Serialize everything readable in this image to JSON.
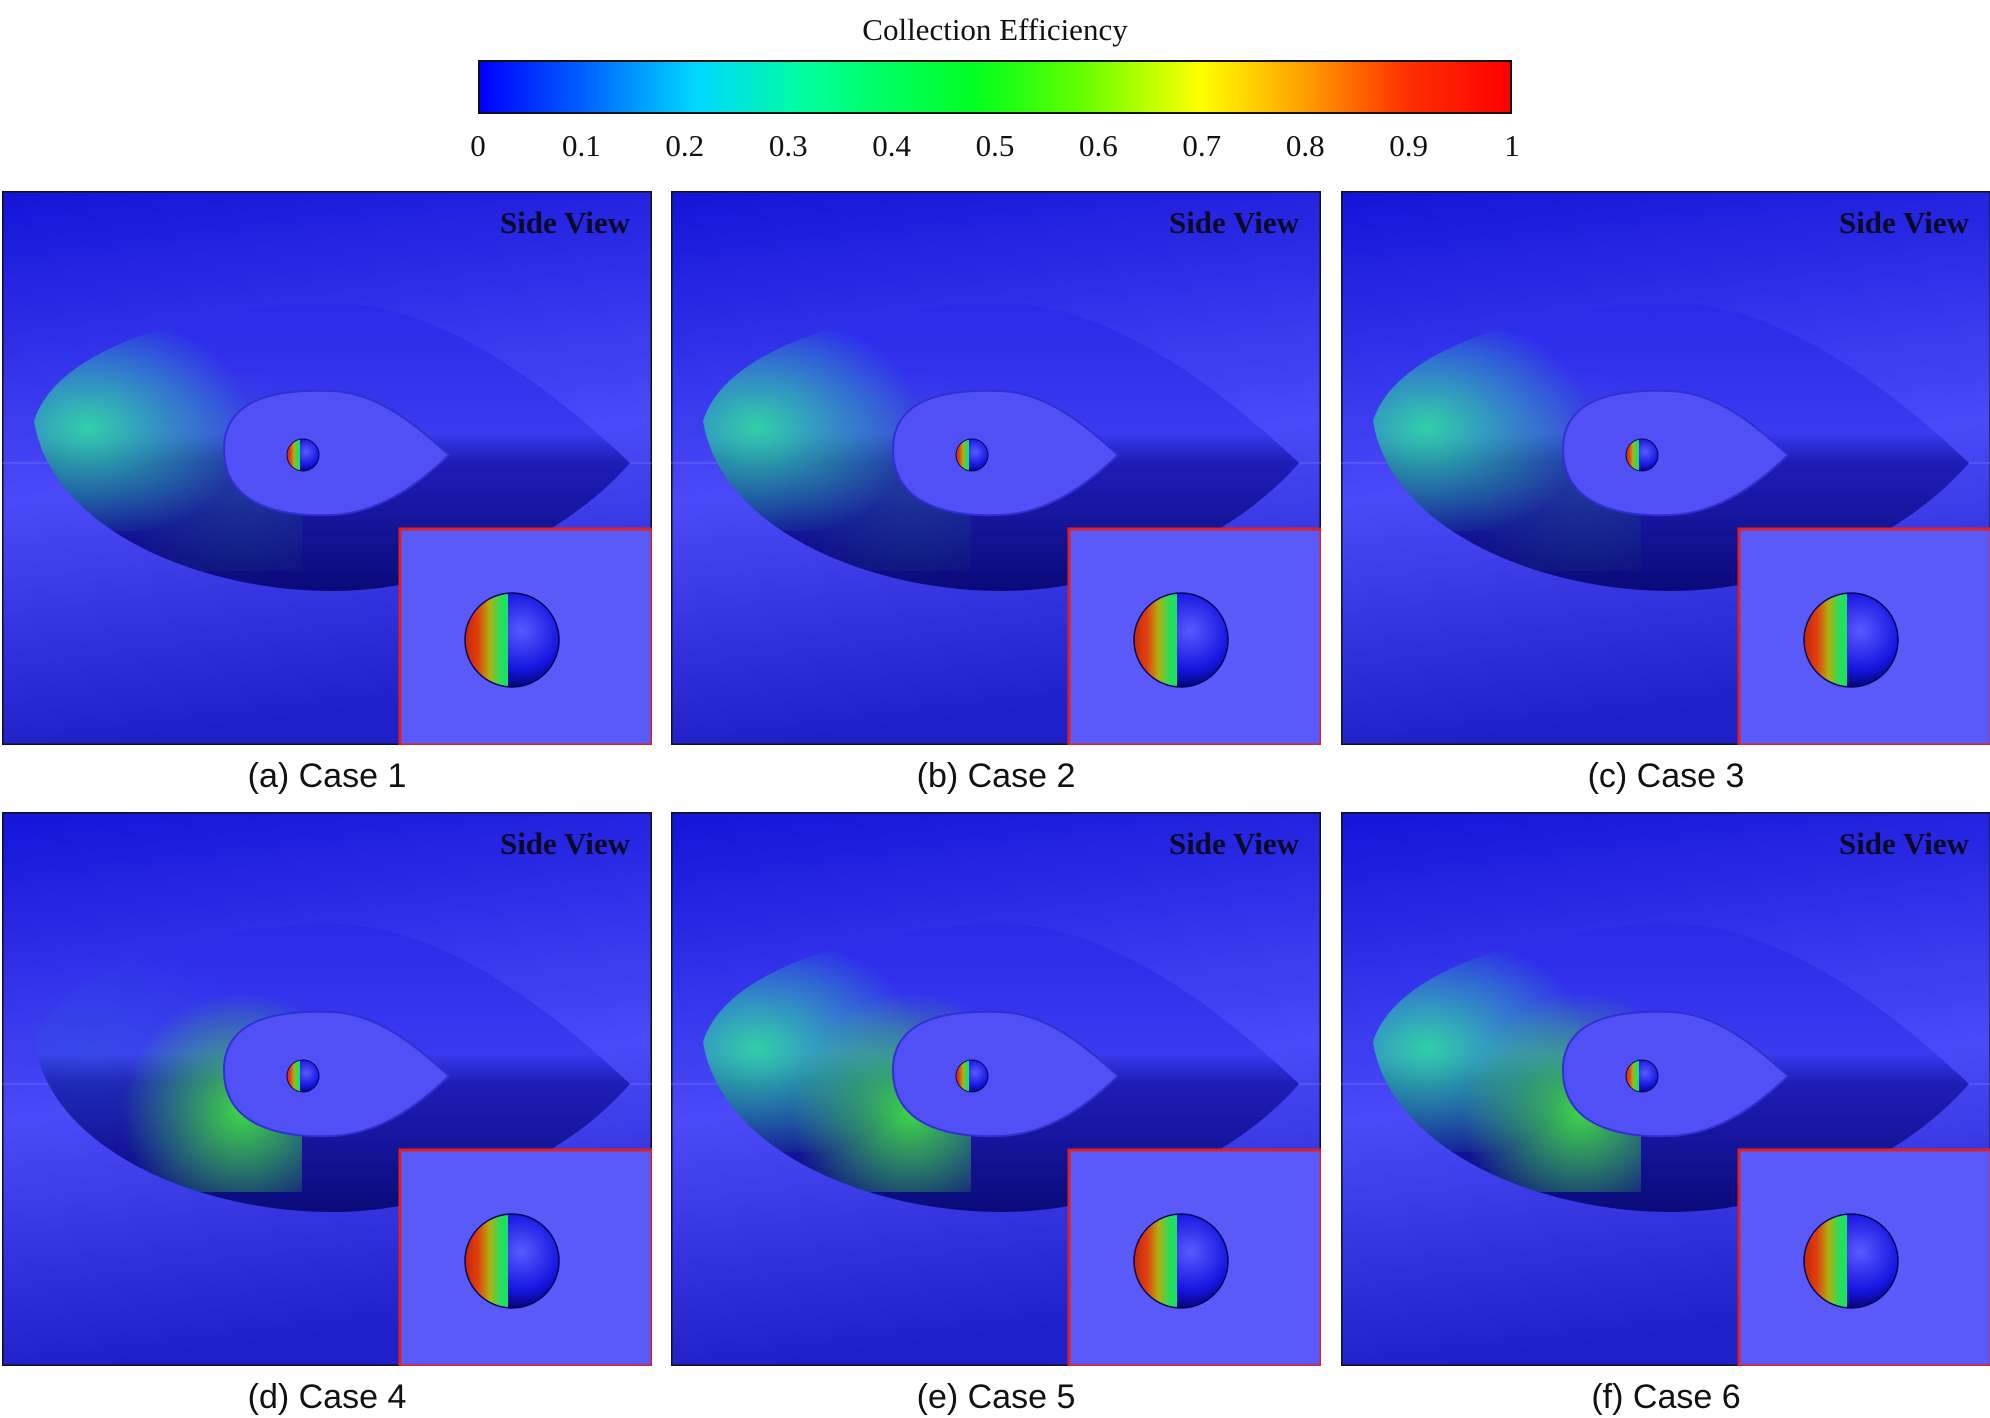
{
  "colorbar": {
    "title": "Collection Efficiency",
    "ticks": [
      "0",
      "0.1",
      "0.2",
      "0.3",
      "0.4",
      "0.5",
      "0.6",
      "0.7",
      "0.8",
      "0.9",
      "1"
    ]
  },
  "panels": [
    {
      "caption": "(a) Case 1",
      "view_label": "Side View",
      "wake": "leading"
    },
    {
      "caption": "(b) Case 2",
      "view_label": "Side View",
      "wake": "leading"
    },
    {
      "caption": "(c) Case 3",
      "view_label": "Side View",
      "wake": "leading"
    },
    {
      "caption": "(d) Case 4",
      "view_label": "Side View",
      "wake": "inner"
    },
    {
      "caption": "(e) Case 5",
      "view_label": "Side View",
      "wake": "both"
    },
    {
      "caption": "(f) Case 6",
      "view_label": "Side View",
      "wake": "both"
    }
  ]
}
